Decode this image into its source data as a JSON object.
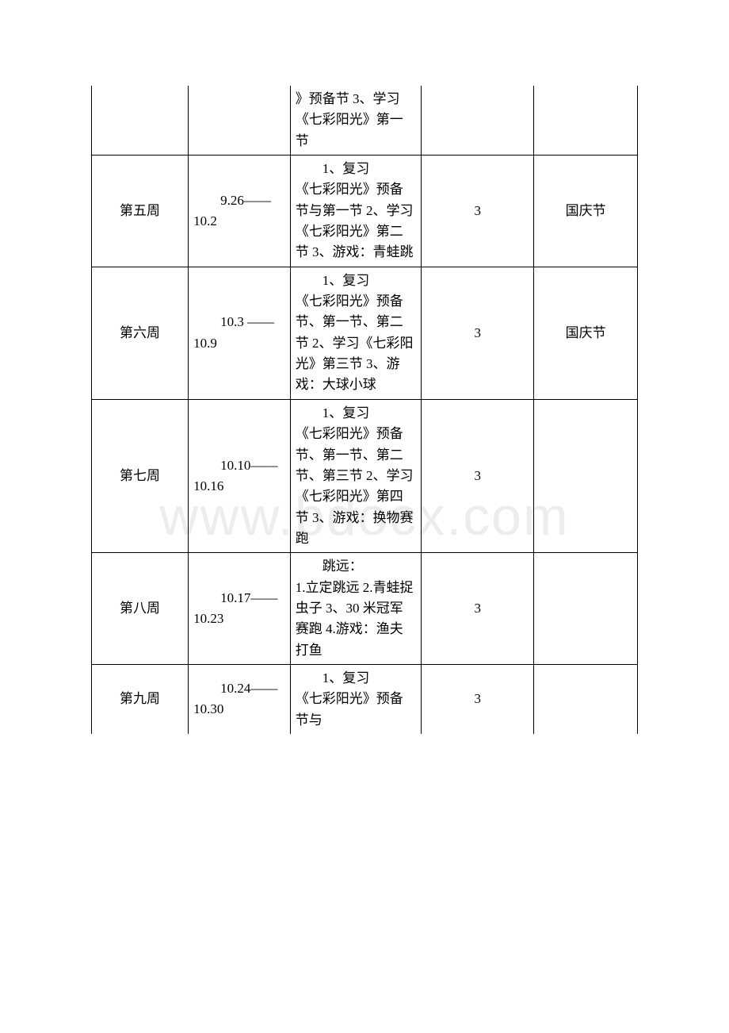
{
  "watermark": "www.bdocx.com",
  "table": {
    "columns": {
      "week_width": 112,
      "date_width": 118,
      "content_width": 152,
      "hours_width": 130,
      "note_width": 120
    },
    "border_color": "#000000",
    "background_color": "#ffffff",
    "text_color": "#000000",
    "font_size": 17,
    "rows": [
      {
        "week": "",
        "date": "",
        "content": "》预备节 3、学习《七彩阳光》第一节",
        "hours": "",
        "note": "",
        "partial_top": true
      },
      {
        "week": "第五周",
        "date": "9.26——10.2",
        "content_first": "1、复习",
        "content_rest": "《七彩阳光》预备节与第一节 2、学习《七彩阳光》第二节 3、游戏：青蛙跳",
        "hours": "3",
        "note": "国庆节"
      },
      {
        "week": "第六周",
        "date": "10.3 ——10.9",
        "content_first": "1、复习",
        "content_rest": "《七彩阳光》预备节、第一节、第二节 2、学习《七彩阳光》第三节 3、游戏：大球小球",
        "hours": "3",
        "note": "国庆节"
      },
      {
        "week": "第七周",
        "date": "10.10——10.16",
        "content_first": "1、复习",
        "content_rest": "《七彩阳光》预备节、第一节、第二节、第三节 2、学习《七彩阳光》第四节 3、游戏：换物赛跑",
        "hours": "3",
        "note": ""
      },
      {
        "week": "第八周",
        "date": "10.17——10.23",
        "content_first": "跳远：",
        "content_rest": "1.立定跳远 2.青蛙捉虫子 3、30 米冠军赛跑 4.游戏：渔夫打鱼",
        "hours": "3",
        "note": ""
      },
      {
        "week": "第九周",
        "date": "10.24——10.30",
        "content_first": "1、复习",
        "content_rest": "《七彩阳光》预备节与",
        "hours": "3",
        "note": "",
        "partial_bottom": true
      }
    ]
  }
}
